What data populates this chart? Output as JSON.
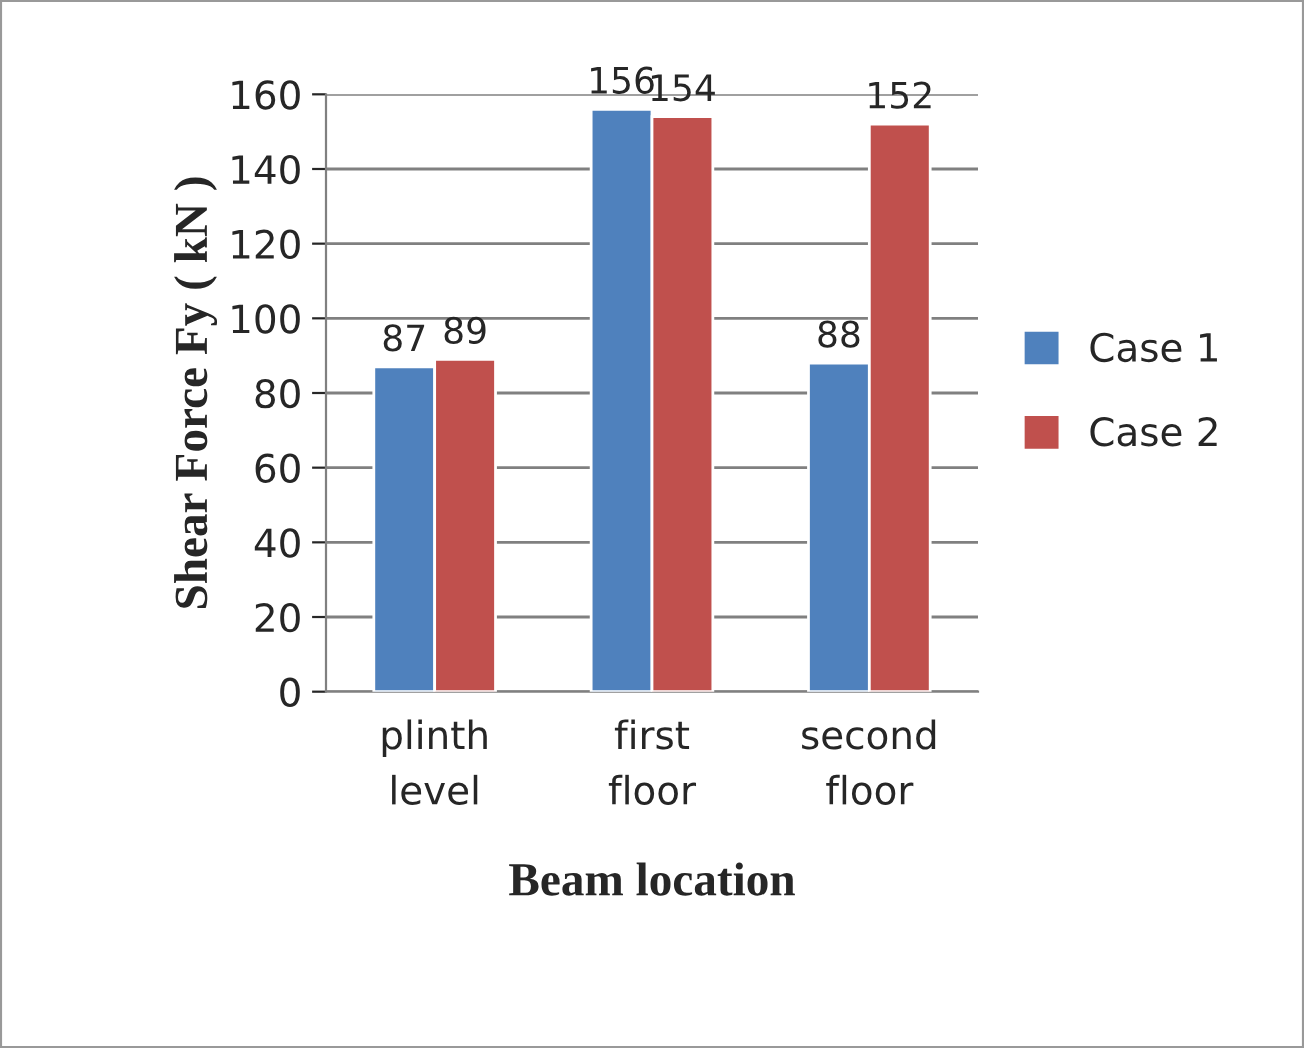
{
  "chart_data": {
    "type": "bar",
    "categories": [
      "plinth\nlevel",
      "first\nfloor",
      "second\nfloor"
    ],
    "series": [
      {
        "name": "Case 1",
        "color": "#4f81bd",
        "values": [
          87,
          156,
          88
        ]
      },
      {
        "name": "Case 2",
        "color": "#c0504d",
        "values": [
          89,
          154,
          152
        ]
      }
    ],
    "ylabel": "Shear Force Fy ( kN )",
    "xlabel": "Beam location",
    "ylim": [
      0,
      160
    ],
    "yticks": [
      0,
      20,
      40,
      60,
      80,
      100,
      120,
      140,
      160
    ],
    "grid": "y",
    "legend": "right",
    "data_labels": true
  }
}
